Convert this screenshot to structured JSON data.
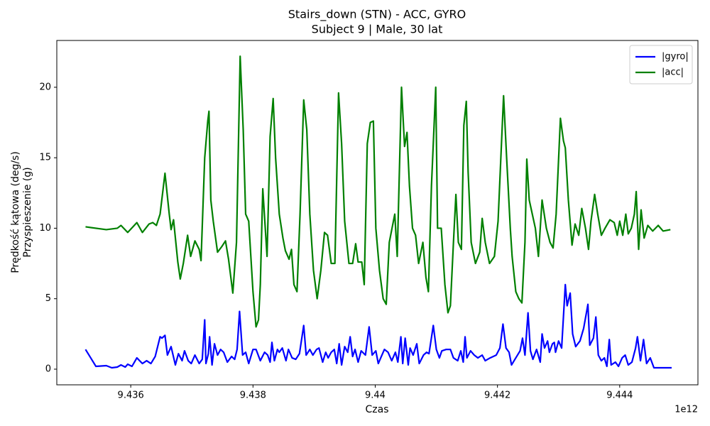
{
  "chart_data": {
    "type": "line",
    "title": "Stairs_down (STN) - ACC, GYRO",
    "subtitle": "Subject 9 | Male, 30 lat",
    "x_label": "Czas",
    "x_offset_label": "1e12",
    "y_label": "Prędkość kątowa (deg/s)",
    "y_label_2": "Przyspieszenie (g)",
    "xlim": [
      9.43479,
      9.44528
    ],
    "xticks": [
      9.436,
      9.438,
      9.44,
      9.442,
      9.444
    ],
    "ylim": [
      -1.11,
      23.32
    ],
    "yticks": [
      0,
      5,
      10,
      15,
      20
    ],
    "grid": false,
    "legend": "upper right",
    "series": [
      {
        "name": "|gyro|",
        "color": "#0000ff",
        "x": [
          9.43526,
          9.43543,
          9.4356,
          9.43569,
          9.43578,
          9.43584,
          9.43591,
          9.43595,
          9.43602,
          9.4361,
          9.43619,
          9.43626,
          9.43633,
          9.4364,
          9.43648,
          9.43651,
          9.43656,
          9.4366,
          9.43666,
          9.43673,
          9.43678,
          9.43684,
          9.43688,
          9.43694,
          9.43699,
          9.43705,
          9.43712,
          9.43717,
          9.43721,
          9.43723,
          9.43727,
          9.43729,
          9.43733,
          9.43737,
          9.43742,
          9.43747,
          9.43752,
          9.43758,
          9.43765,
          9.4377,
          9.43774,
          9.43778,
          9.43783,
          9.43788,
          9.43793,
          9.438,
          9.43805,
          9.43812,
          9.43819,
          9.43824,
          9.43828,
          9.43831,
          9.43835,
          9.4384,
          9.43843,
          9.43848,
          9.43854,
          9.43858,
          9.43864,
          9.4387,
          9.43876,
          9.43883,
          9.43887,
          9.43893,
          9.43898,
          9.43904,
          9.43908,
          9.43914,
          9.43919,
          9.43923,
          9.43928,
          9.43933,
          9.43937,
          9.43941,
          9.43945,
          9.4395,
          9.43955,
          9.43959,
          9.43963,
          9.43967,
          9.43972,
          9.43977,
          9.43984,
          9.4399,
          9.43995,
          9.44001,
          9.44005,
          9.44011,
          9.44015,
          9.44021,
          9.44027,
          9.44033,
          9.44037,
          9.44042,
          9.44045,
          9.44049,
          9.44054,
          9.44057,
          9.44062,
          9.44068,
          9.44072,
          9.44079,
          9.44084,
          9.44088,
          9.44095,
          9.441,
          9.44105,
          9.44109,
          9.44116,
          9.44123,
          9.44128,
          9.44135,
          9.4414,
          9.44144,
          9.44147,
          9.4415,
          9.44156,
          9.44162,
          9.44168,
          9.44175,
          9.4418,
          9.44188,
          9.44198,
          9.44204,
          9.44209,
          9.44214,
          9.44219,
          9.44223,
          9.4423,
          9.44237,
          9.44241,
          9.44245,
          9.4425,
          9.44254,
          9.44258,
          9.44264,
          9.4427,
          9.44273,
          9.44277,
          9.44282,
          9.44285,
          9.4429,
          9.44293,
          9.44295,
          9.443,
          9.44305,
          9.44311,
          9.44314,
          9.44319,
          9.44323,
          9.44328,
          9.44335,
          9.44341,
          9.44348,
          9.44351,
          9.44357,
          9.44361,
          9.44365,
          9.4437,
          9.44375,
          9.44379,
          9.44383,
          9.44386,
          9.44393,
          9.44398,
          9.44404,
          9.44409,
          9.44414,
          9.4442,
          9.44426,
          9.44429,
          9.44434,
          9.44439,
          9.44444,
          9.4445,
          9.44456,
          9.44468,
          9.44485
        ],
        "values": [
          1.4,
          0.2,
          0.25,
          0.1,
          0.15,
          0.3,
          0.15,
          0.35,
          0.2,
          0.8,
          0.4,
          0.6,
          0.4,
          0.9,
          2.3,
          2.2,
          2.4,
          1.0,
          1.6,
          0.3,
          1.1,
          0.6,
          1.3,
          0.6,
          0.4,
          1.0,
          0.4,
          0.7,
          3.5,
          0.4,
          1.1,
          2.3,
          0.3,
          1.8,
          1.0,
          1.4,
          1.2,
          0.5,
          0.9,
          0.7,
          1.4,
          4.1,
          1.0,
          1.2,
          0.4,
          1.4,
          1.4,
          0.6,
          1.2,
          1.0,
          0.5,
          1.9,
          0.6,
          1.4,
          1.2,
          1.5,
          0.6,
          1.4,
          0.8,
          0.7,
          1.1,
          3.1,
          1.0,
          1.4,
          1.0,
          1.4,
          1.5,
          0.5,
          1.2,
          0.8,
          1.2,
          1.4,
          0.4,
          1.8,
          0.3,
          1.6,
          1.2,
          2.3,
          0.9,
          1.4,
          0.5,
          1.3,
          1.0,
          3.0,
          1.0,
          1.3,
          0.4,
          1.0,
          1.4,
          1.2,
          0.6,
          1.2,
          0.5,
          2.3,
          0.4,
          2.2,
          0.3,
          1.5,
          1.0,
          1.8,
          0.4,
          1.0,
          1.2,
          1.1,
          3.1,
          1.4,
          0.8,
          1.3,
          1.4,
          1.4,
          0.8,
          0.6,
          1.3,
          0.5,
          2.3,
          0.8,
          1.3,
          1.0,
          0.8,
          1.0,
          0.6,
          0.8,
          1.0,
          1.5,
          3.2,
          1.5,
          1.2,
          0.3,
          0.8,
          1.3,
          2.2,
          1.0,
          4.0,
          1.3,
          0.7,
          1.4,
          0.5,
          2.5,
          1.5,
          2.0,
          1.2,
          1.8,
          1.9,
          1.2,
          2.0,
          1.5,
          6.0,
          4.5,
          5.4,
          2.5,
          1.6,
          2.0,
          2.9,
          4.6,
          1.7,
          2.2,
          3.7,
          1.0,
          0.6,
          0.8,
          0.2,
          2.1,
          0.3,
          0.5,
          0.2,
          0.8,
          1.0,
          0.3,
          0.5,
          1.5,
          2.3,
          0.6,
          2.1,
          0.4,
          0.8,
          0.1,
          0.1,
          0.1
        ]
      },
      {
        "name": "|acc|",
        "color": "#008000",
        "x": [
          9.43526,
          9.4356,
          9.43578,
          9.43584,
          9.43595,
          9.4361,
          9.43619,
          9.4363,
          9.43636,
          9.43642,
          9.43648,
          9.43656,
          9.43663,
          9.43666,
          9.4367,
          9.43677,
          9.43681,
          9.43686,
          9.43693,
          9.43698,
          9.43705,
          9.43712,
          9.43715,
          9.43721,
          9.43726,
          9.43728,
          9.43731,
          9.43735,
          9.43742,
          9.43749,
          9.43755,
          9.4376,
          9.43767,
          9.43773,
          9.43779,
          9.43784,
          9.43788,
          9.43793,
          9.438,
          9.43805,
          9.43809,
          9.43812,
          9.43816,
          9.43823,
          9.43828,
          9.43833,
          9.43837,
          9.43843,
          9.43849,
          9.43853,
          9.43859,
          9.43863,
          9.43867,
          9.43872,
          9.43877,
          9.43883,
          9.43888,
          9.43893,
          9.43899,
          9.43905,
          9.43911,
          9.43917,
          9.43922,
          9.43928,
          9.43934,
          9.4394,
          9.43945,
          9.4395,
          9.43957,
          9.43963,
          9.43968,
          9.43972,
          9.43978,
          9.43982,
          9.43987,
          9.43992,
          9.43997,
          9.44001,
          9.44007,
          9.44013,
          9.44018,
          9.44023,
          9.44032,
          9.44036,
          9.44043,
          9.44048,
          9.44052,
          9.44056,
          9.44061,
          9.44066,
          9.44071,
          9.44078,
          9.44083,
          9.44087,
          9.44092,
          9.44099,
          9.44102,
          9.44108,
          9.44114,
          9.44119,
          9.44123,
          9.44128,
          9.44132,
          9.44136,
          9.44141,
          9.44145,
          9.44149,
          9.44152,
          9.44157,
          9.44164,
          9.44171,
          9.44175,
          9.4418,
          9.44187,
          9.44195,
          9.44201,
          9.4421,
          9.44215,
          9.44221,
          9.44224,
          9.4423,
          9.44235,
          9.4424,
          9.44245,
          9.44248,
          9.44252,
          9.44257,
          9.44262,
          9.44267,
          9.44273,
          9.4428,
          9.44286,
          9.44291,
          9.44296,
          9.44303,
          9.44308,
          9.44311,
          9.44316,
          9.44322,
          9.44327,
          9.44333,
          9.44338,
          9.44344,
          9.44349,
          9.44353,
          9.44359,
          9.44364,
          9.4437,
          9.44376,
          9.44384,
          9.44391,
          9.44396,
          9.444,
          9.44405,
          9.4441,
          9.44414,
          9.44419,
          9.44424,
          9.44427,
          9.44431,
          9.44435,
          9.4444,
          9.44446,
          9.44454,
          9.44463,
          9.44471,
          9.44483
        ],
        "values": [
          10.1,
          9.9,
          10.0,
          10.2,
          9.7,
          10.4,
          9.7,
          10.3,
          10.4,
          10.2,
          11.0,
          13.9,
          11.0,
          9.9,
          10.6,
          7.6,
          6.4,
          7.5,
          9.5,
          8.0,
          9.1,
          8.5,
          7.7,
          15.0,
          17.6,
          18.3,
          12.0,
          10.5,
          8.3,
          8.7,
          9.1,
          7.8,
          5.4,
          9.0,
          22.2,
          17.0,
          11.0,
          10.5,
          5.5,
          3.0,
          3.5,
          6.0,
          12.8,
          8.0,
          16.5,
          19.2,
          15.0,
          11.0,
          9.3,
          8.4,
          7.8,
          8.5,
          6.0,
          5.5,
          11.0,
          19.1,
          17.0,
          11.0,
          7.0,
          5.0,
          7.0,
          9.7,
          9.5,
          7.5,
          7.5,
          19.6,
          16.0,
          10.5,
          7.5,
          7.5,
          8.9,
          7.6,
          7.6,
          6.0,
          16.0,
          17.5,
          17.6,
          10.0,
          7.0,
          5.0,
          4.6,
          9.0,
          11.0,
          8.0,
          20.0,
          15.8,
          16.8,
          13.0,
          10.0,
          9.5,
          7.5,
          9.0,
          6.5,
          5.5,
          13.0,
          20.0,
          10.0,
          10.0,
          6.0,
          4.0,
          4.5,
          9.0,
          12.4,
          9.0,
          8.5,
          17.3,
          19.0,
          14.0,
          9.0,
          7.5,
          8.3,
          10.7,
          9.0,
          7.5,
          8.0,
          10.5,
          19.4,
          15.0,
          10.0,
          8.0,
          5.5,
          5.0,
          4.7,
          9.0,
          14.9,
          12.0,
          11.0,
          10.0,
          8.0,
          12.0,
          10.0,
          9.0,
          8.6,
          11.0,
          17.8,
          16.2,
          15.7,
          12.0,
          8.8,
          10.3,
          9.5,
          11.4,
          10.0,
          8.5,
          10.5,
          12.4,
          11.0,
          9.5,
          10.0,
          10.6,
          10.4,
          9.5,
          10.5,
          9.5,
          11.0,
          9.6,
          10.0,
          11.0,
          12.6,
          8.5,
          11.3,
          9.3,
          10.2,
          9.8,
          10.2,
          9.8,
          9.9
        ]
      }
    ]
  }
}
